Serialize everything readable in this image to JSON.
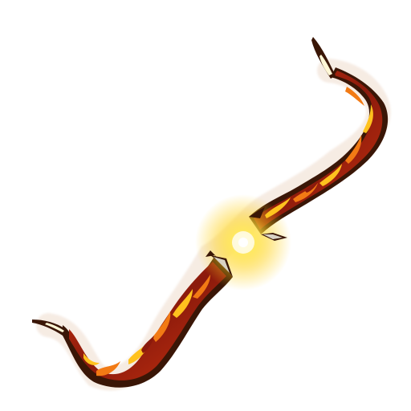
{
  "item": {
    "icon": "flame-bow-icon",
    "description_visible": false
  },
  "colors": {
    "background": "#ffffff",
    "outline": "#3a1606",
    "limb_dark": "#8b1a0c",
    "limb_mid": "#c8320f",
    "flame_orange": "#f27a14",
    "flame_yellow": "#ffc21e",
    "glow_core": "#fffbe0",
    "glow_outer": "#ffd21f",
    "tip_highlight": "#fff7d6"
  }
}
